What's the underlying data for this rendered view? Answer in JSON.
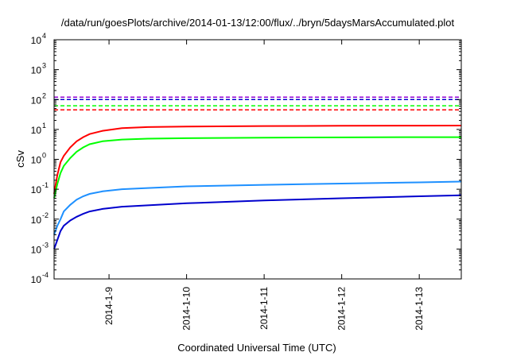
{
  "chart_data": {
    "type": "line",
    "title": "/data/run/goesPlots/archive/2014-01-13/12:00/flux/../bryn/5daysMarsAccumulated.plot",
    "xlabel": "Coordinated Universal Time (UTC)",
    "ylabel": "cSv",
    "y_scale": "log",
    "ylim": [
      0.0001,
      10000
    ],
    "xlim": [
      "2014-01-08 07:00",
      "2014-01-13 13:00"
    ],
    "grid": false,
    "x_ticks": [
      "2014-1-9",
      "2014-1-10",
      "2014-1-11",
      "2014-1-12",
      "2014-1-13"
    ],
    "y_ticks": [
      {
        "base": "10",
        "exp": "-4"
      },
      {
        "base": "10",
        "exp": "-3"
      },
      {
        "base": "10",
        "exp": "-2"
      },
      {
        "base": "10",
        "exp": "-1"
      },
      {
        "base": "10",
        "exp": "0"
      },
      {
        "base": "10",
        "exp": "1"
      },
      {
        "base": "10",
        "exp": "2"
      },
      {
        "base": "10",
        "exp": "3"
      },
      {
        "base": "10",
        "exp": "4"
      }
    ],
    "series": [
      {
        "color": "#ff0000",
        "style": "solid",
        "x": [
          "2014-01-08 07:00",
          "2014-01-08 08:00",
          "2014-01-08 09:00",
          "2014-01-08 10:00",
          "2014-01-08 12:00",
          "2014-01-08 14:00",
          "2014-01-08 16:00",
          "2014-01-08 18:00",
          "2014-01-08 22:00",
          "2014-01-09 04:00",
          "2014-01-09 12:00",
          "2014-01-10 00:00",
          "2014-01-11 00:00",
          "2014-01-12 00:00",
          "2014-01-13 00:00",
          "2014-01-13 13:00"
        ],
        "values": [
          0.07,
          0.3,
          0.8,
          1.3,
          2.5,
          4,
          5.5,
          7,
          9,
          11,
          12,
          12.5,
          13,
          13.2,
          13.4,
          13.5
        ]
      },
      {
        "color": "#00ff00",
        "style": "solid",
        "x": [
          "2014-01-08 07:00",
          "2014-01-08 08:00",
          "2014-01-08 09:00",
          "2014-01-08 10:00",
          "2014-01-08 12:00",
          "2014-01-08 14:00",
          "2014-01-08 16:00",
          "2014-01-08 18:00",
          "2014-01-08 22:00",
          "2014-01-09 04:00",
          "2014-01-09 12:00",
          "2014-01-10 00:00",
          "2014-01-11 00:00",
          "2014-01-12 00:00",
          "2014-01-13 00:00",
          "2014-01-13 13:00"
        ],
        "values": [
          0.05,
          0.15,
          0.35,
          0.6,
          1.1,
          1.8,
          2.5,
          3.2,
          4,
          4.6,
          4.9,
          5.1,
          5.3,
          5.4,
          5.5,
          5.5
        ]
      },
      {
        "color": "#1e90ff",
        "style": "solid",
        "x": [
          "2014-01-08 07:00",
          "2014-01-08 08:00",
          "2014-01-08 09:00",
          "2014-01-08 10:00",
          "2014-01-08 12:00",
          "2014-01-08 14:00",
          "2014-01-08 16:00",
          "2014-01-08 18:00",
          "2014-01-08 22:00",
          "2014-01-09 04:00",
          "2014-01-09 12:00",
          "2014-01-10 00:00",
          "2014-01-11 00:00",
          "2014-01-12 00:00",
          "2014-01-13 00:00",
          "2014-01-13 13:00"
        ],
        "values": [
          0.003,
          0.006,
          0.01,
          0.018,
          0.03,
          0.045,
          0.058,
          0.07,
          0.085,
          0.1,
          0.11,
          0.125,
          0.14,
          0.155,
          0.17,
          0.18
        ]
      },
      {
        "color": "#0000cd",
        "style": "solid",
        "x": [
          "2014-01-08 07:00",
          "2014-01-08 08:00",
          "2014-01-08 09:00",
          "2014-01-08 10:00",
          "2014-01-08 12:00",
          "2014-01-08 14:00",
          "2014-01-08 16:00",
          "2014-01-08 18:00",
          "2014-01-08 22:00",
          "2014-01-09 04:00",
          "2014-01-09 12:00",
          "2014-01-10 00:00",
          "2014-01-11 00:00",
          "2014-01-12 00:00",
          "2014-01-13 00:00",
          "2014-01-13 13:00"
        ],
        "values": [
          0.001,
          0.002,
          0.004,
          0.006,
          0.009,
          0.012,
          0.015,
          0.018,
          0.022,
          0.026,
          0.029,
          0.034,
          0.042,
          0.05,
          0.058,
          0.063
        ]
      },
      {
        "color": "#ff0000",
        "style": "dashed",
        "x": [
          "2014-01-08 07:00",
          "2014-01-13 13:00"
        ],
        "values": [
          45,
          45
        ]
      },
      {
        "color": "#00ff00",
        "style": "dashed",
        "x": [
          "2014-01-08 07:00",
          "2014-01-13 13:00"
        ],
        "values": [
          62,
          62
        ]
      },
      {
        "color": "#0000cd",
        "style": "dashed",
        "x": [
          "2014-01-08 07:00",
          "2014-01-13 13:00"
        ],
        "values": [
          100,
          100
        ]
      },
      {
        "color": "#9400d3",
        "style": "dashed",
        "x": [
          "2014-01-08 07:00",
          "2014-01-13 13:00"
        ],
        "values": [
          120,
          120
        ]
      }
    ]
  }
}
